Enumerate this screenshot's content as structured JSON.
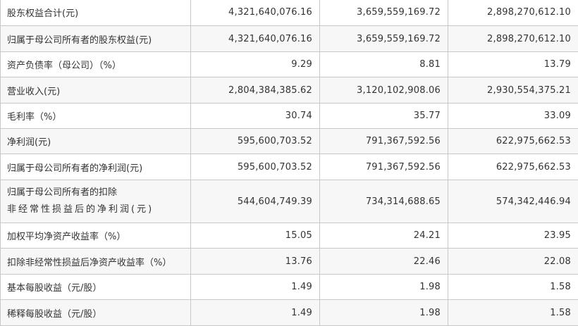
{
  "rows": [
    {
      "label": "股东权益合计(元)",
      "values": [
        "4,321,640,076.16",
        "3,659,559,169.72",
        "2,898,270,612.10"
      ]
    },
    {
      "label": "归属于母公司所有者的股东权益(元)",
      "values": [
        "4,321,640,076.16",
        "3,659,559,169.72",
        "2,898,270,612.10"
      ]
    },
    {
      "label": "资产负债率（母公司）（%）",
      "values": [
        "9.29",
        "8.81",
        "13.79"
      ]
    },
    {
      "label": "营业收入(元)",
      "values": [
        "2,804,384,385.62",
        "3,120,102,908.06",
        "2,930,554,375.21"
      ]
    },
    {
      "label": "毛利率（%）",
      "values": [
        "30.74",
        "35.77",
        "33.09"
      ]
    },
    {
      "label": "净利润(元)",
      "values": [
        "595,600,703.52",
        "791,367,592.56",
        "622,975,662.53"
      ]
    },
    {
      "label": "归属于母公司所有者的净利润(元)",
      "values": [
        "595,600,703.52",
        "791,367,592.56",
        "622,975,662.53"
      ]
    },
    {
      "label_line1": "归属于母公司所有者的扣除",
      "label_line2": "非经常性损益后的净利润(元)",
      "values": [
        "544,604,749.39",
        "734,314,688.65",
        "574,342,446.94"
      ]
    },
    {
      "label": "加权平均净资产收益率（%）",
      "values": [
        "15.05",
        "24.21",
        "23.95"
      ]
    },
    {
      "label": "扣除非经常性损益后净资产收益率（%）",
      "values": [
        "13.76",
        "22.46",
        "22.08"
      ]
    },
    {
      "label": "基本每股收益（元/股）",
      "values": [
        "1.49",
        "1.98",
        "1.58"
      ]
    },
    {
      "label": "稀释每股收益（元/股）",
      "values": [
        "1.49",
        "1.98",
        "1.58"
      ]
    }
  ]
}
